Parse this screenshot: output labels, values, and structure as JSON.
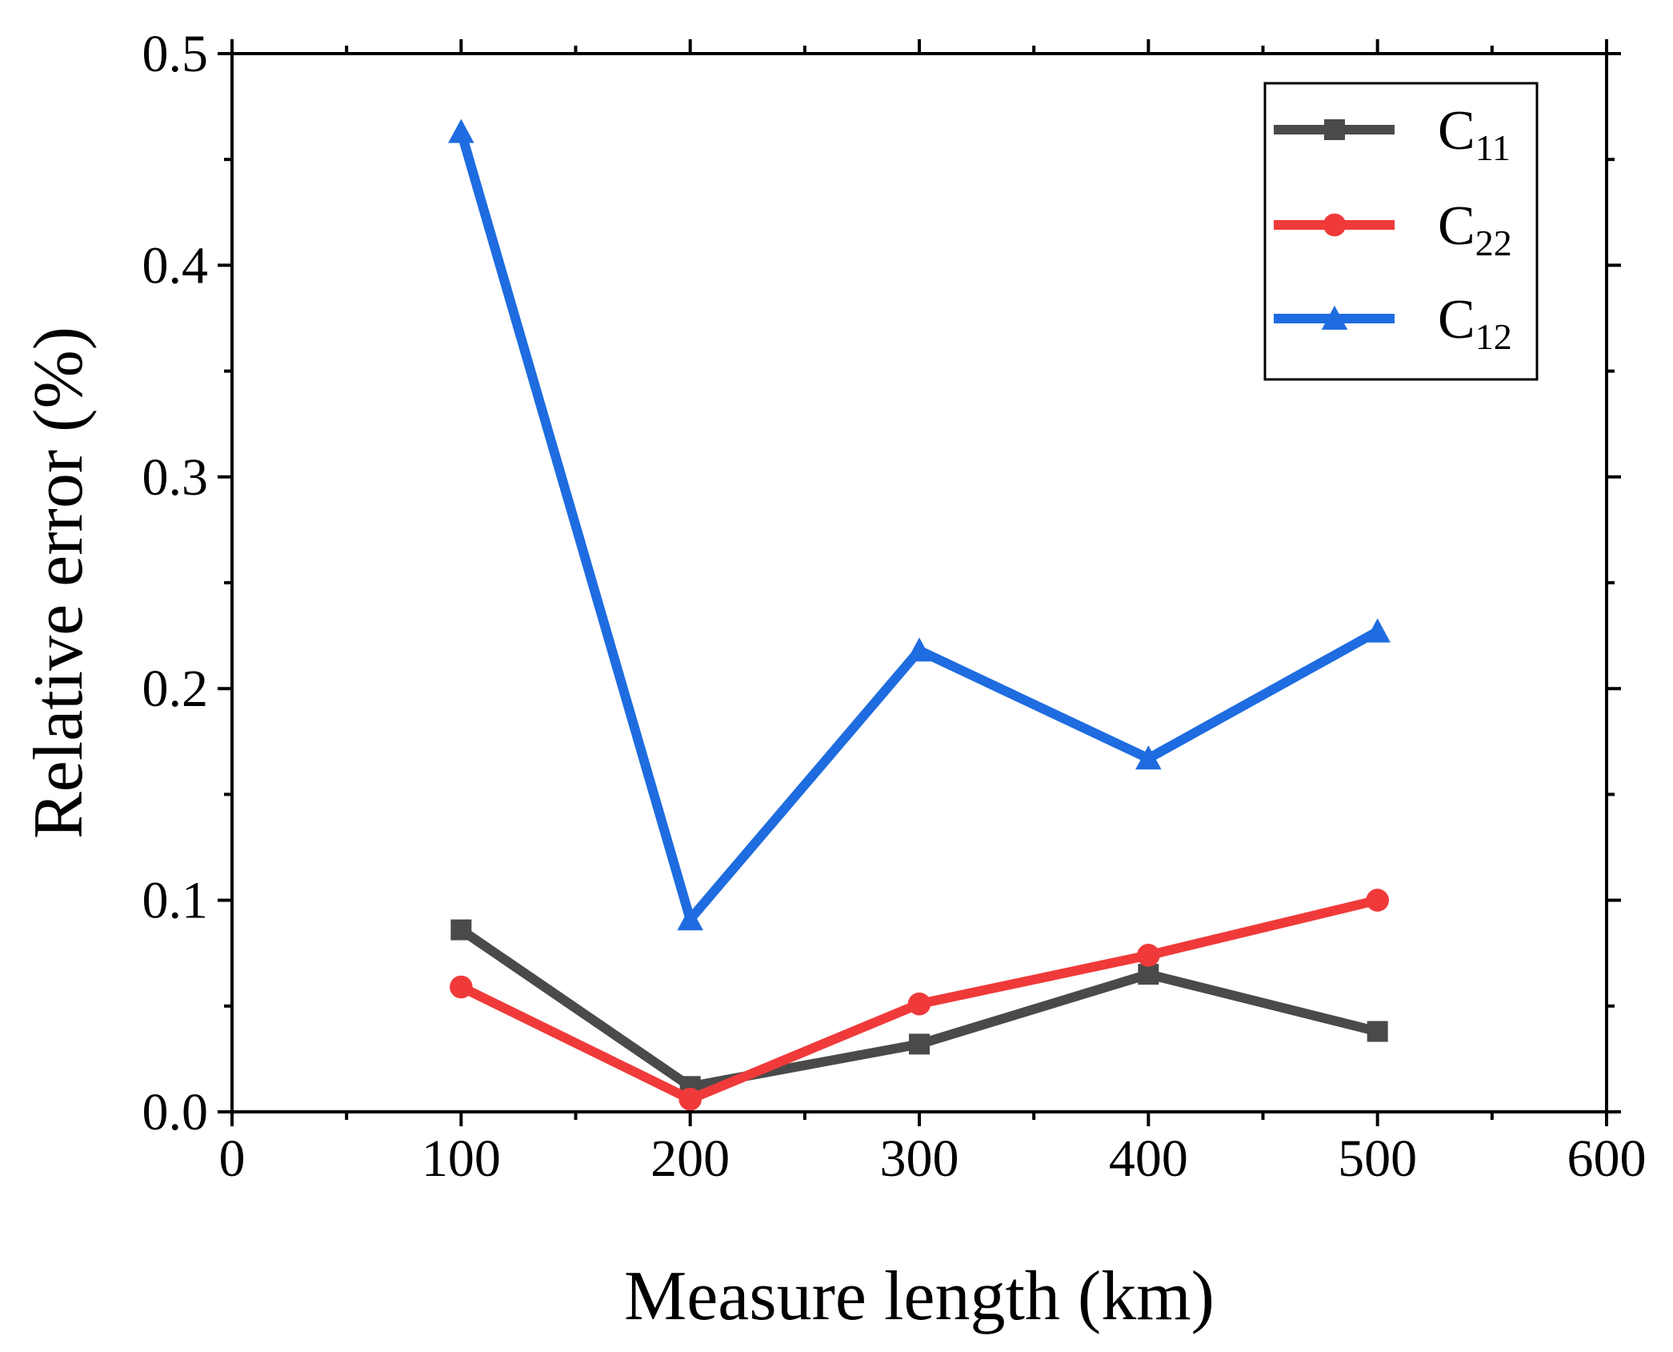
{
  "chart_data": {
    "type": "line",
    "title": "",
    "xlabel": "Measure length (km)",
    "ylabel": "Relative error (%)",
    "xlim": [
      0,
      600
    ],
    "ylim": [
      0.0,
      0.5
    ],
    "x_ticks": [
      "0",
      "100",
      "200",
      "300",
      "400",
      "500",
      "600"
    ],
    "y_ticks": [
      "0.0",
      "0.1",
      "0.2",
      "0.3",
      "0.4",
      "0.5"
    ],
    "grid": false,
    "legend_position": "top-right",
    "x": [
      100,
      200,
      300,
      400,
      500
    ],
    "series": [
      {
        "name": "C11",
        "label_main": "C",
        "label_sub": "11",
        "marker": "square",
        "color": "#4a4a4a",
        "values": [
          0.086,
          0.012,
          0.032,
          0.065,
          0.038
        ]
      },
      {
        "name": "C22",
        "label_main": "C",
        "label_sub": "22",
        "marker": "circle",
        "color": "#f03a3a",
        "values": [
          0.059,
          0.006,
          0.051,
          0.074,
          0.1
        ]
      },
      {
        "name": "C12",
        "label_main": "C",
        "label_sub": "12",
        "marker": "triangle",
        "color": "#1e6ce0",
        "values": [
          0.463,
          0.091,
          0.218,
          0.167,
          0.227
        ]
      }
    ]
  }
}
